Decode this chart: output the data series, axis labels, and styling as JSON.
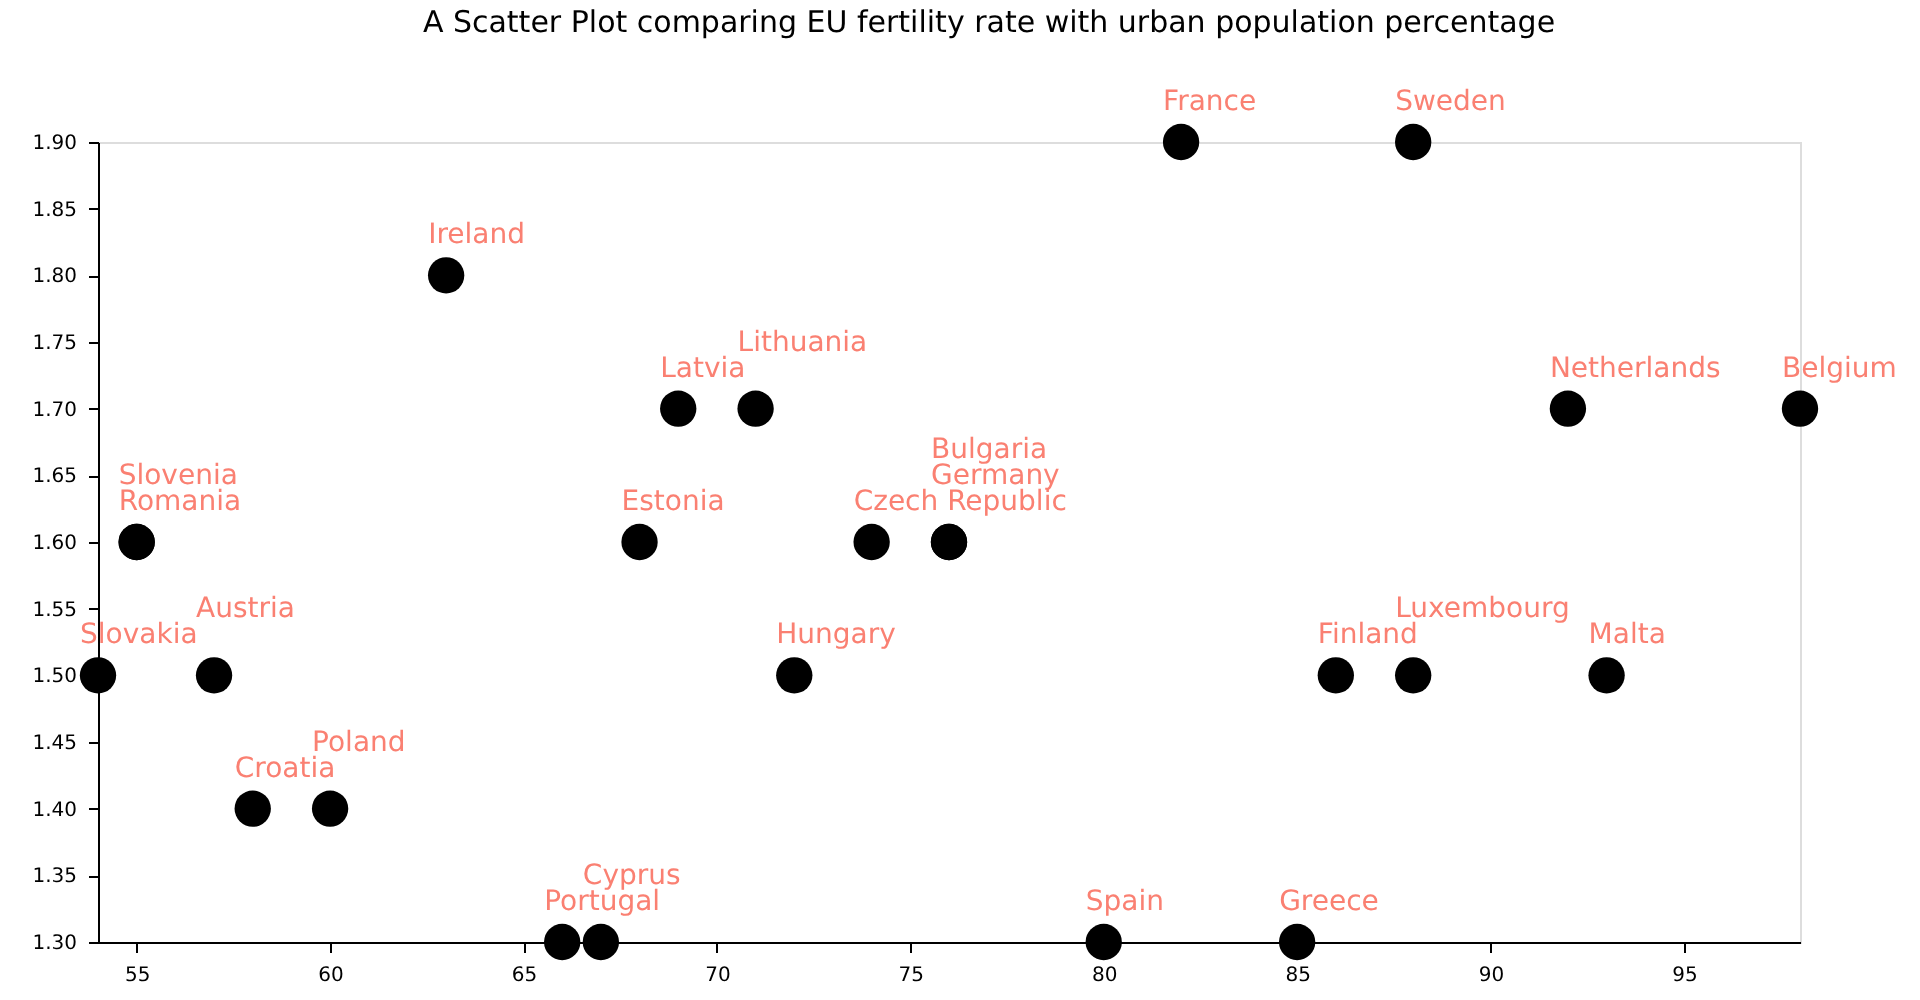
{
  "chart_data": {
    "type": "scatter",
    "title": "A Scatter Plot comparing EU fertility rate with urban population percentage",
    "series": [
      {
        "color": "#000000",
        "x": [
          54,
          55,
          55,
          57,
          58,
          60,
          63,
          66,
          67,
          68,
          69,
          71,
          72,
          74,
          76,
          76,
          80,
          82,
          85,
          86,
          88,
          88,
          92,
          93,
          98
        ],
        "values": [
          1.5,
          1.6,
          1.6,
          1.5,
          1.4,
          1.4,
          1.8,
          1.3,
          1.3,
          1.6,
          1.7,
          1.7,
          1.5,
          1.6,
          1.6,
          1.6,
          1.3,
          1.9,
          1.3,
          1.5,
          1.5,
          1.9,
          1.7,
          1.5,
          1.7
        ],
        "value_labels": [
          "Slovakia",
          "Romania",
          "Slovenia",
          "Austria",
          "Croatia",
          "Poland",
          "Ireland",
          "Portugal",
          "Cyprus",
          "Estonia",
          "Latvia",
          "Lithuania",
          "Hungary",
          "Czech Republic",
          "Germany",
          "Bulgaria",
          "Spain",
          "France",
          "Greece",
          "Finland",
          "Luxembourg",
          "Sweden",
          "Netherlands",
          "Malta",
          "Belgium"
        ]
      }
    ],
    "xlim": [
      54,
      98
    ],
    "xticks": [
      55,
      60,
      65,
      70,
      75,
      80,
      85,
      90,
      95
    ],
    "ylim": [
      1.3,
      1.9
    ],
    "yticks": [
      {
        "value": 1.3,
        "label": "1.30"
      },
      {
        "value": 1.35,
        "label": "1.35"
      },
      {
        "value": 1.4,
        "label": "1.40"
      },
      {
        "value": 1.45,
        "label": "1.45"
      },
      {
        "value": 1.5,
        "label": "1.50"
      },
      {
        "value": 1.55,
        "label": "1.55"
      },
      {
        "value": 1.6,
        "label": "1.60"
      },
      {
        "value": 1.65,
        "label": "1.65"
      },
      {
        "value": 1.7,
        "label": "1.70"
      },
      {
        "value": 1.75,
        "label": "1.75"
      },
      {
        "value": 1.8,
        "label": "1.80"
      },
      {
        "value": 1.85,
        "label": "1.85"
      },
      {
        "value": 1.9,
        "label": "1.90"
      }
    ],
    "grid": false,
    "legend": false,
    "marker": "circle"
  }
}
